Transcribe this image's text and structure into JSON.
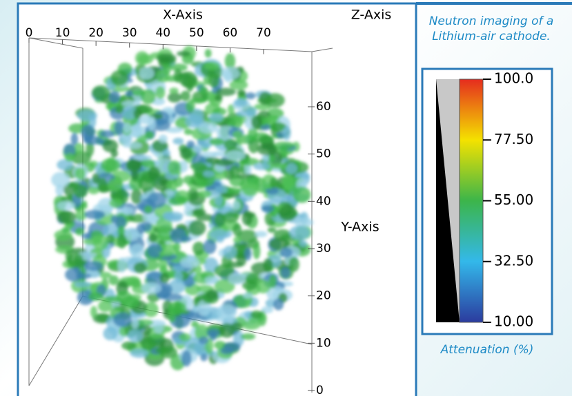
{
  "figure": {
    "x_axis": {
      "label": "X-Axis",
      "ticks": [
        0,
        10,
        20,
        30,
        40,
        50,
        60,
        70
      ]
    },
    "y_axis": {
      "label": "Y-Axis",
      "ticks": [
        60,
        50,
        40,
        30,
        20,
        10,
        0
      ]
    },
    "z_axis": {
      "label": "Z-Axis"
    }
  },
  "caption": "Neutron imaging of a Lithium-air cathode.",
  "colorbar": {
    "label": "Attenuation (%)",
    "range": [
      10,
      100
    ],
    "ticks": [
      {
        "value": 100,
        "label": "100.0"
      },
      {
        "value": 77.5,
        "label": "77.50"
      },
      {
        "value": 55,
        "label": "55.00"
      },
      {
        "value": 32.5,
        "label": "32.50"
      },
      {
        "value": 10,
        "label": "10.00"
      }
    ]
  }
}
